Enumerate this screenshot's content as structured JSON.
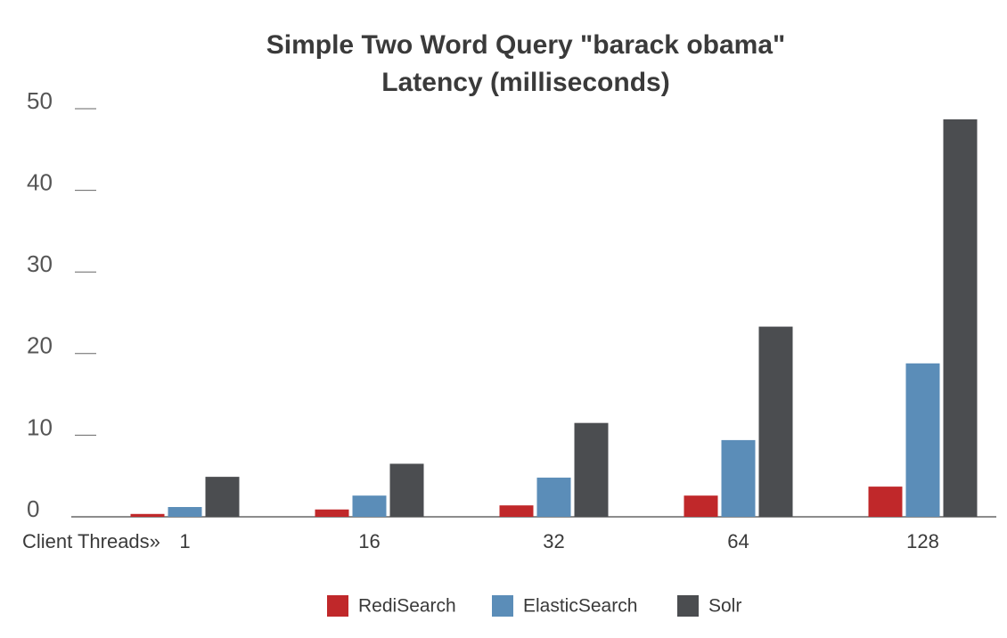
{
  "chart_data": {
    "type": "bar",
    "title": "Simple Two Word Query \"barack obama\"",
    "subtitle": "Latency (milliseconds)",
    "x_label": "Client Threads»",
    "categories": [
      "1",
      "16",
      "32",
      "64",
      "128"
    ],
    "series": [
      {
        "name": "RediSearch",
        "color": "#c0282a",
        "values": [
          0.35,
          0.9,
          1.4,
          2.6,
          3.7
        ]
      },
      {
        "name": "ElasticSearch",
        "color": "#5b8db8",
        "values": [
          1.2,
          2.6,
          4.8,
          9.4,
          18.8
        ]
      },
      {
        "name": "Solr",
        "color": "#4b4d50",
        "values": [
          4.9,
          6.5,
          11.5,
          23.3,
          48.7
        ]
      }
    ],
    "ylim": [
      0,
      50
    ],
    "yticks": [
      0,
      10,
      20,
      30,
      40,
      50
    ],
    "legend": "bottom"
  }
}
